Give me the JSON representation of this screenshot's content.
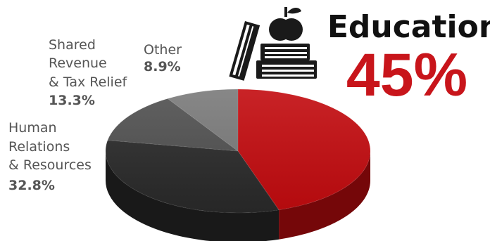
{
  "chart_data": {
    "type": "pie",
    "style": "3d",
    "slices": [
      {
        "name": "Education",
        "name_lines": [
          "Education"
        ],
        "value": 45,
        "label": "45%",
        "color": "#c30b0f"
      },
      {
        "name": "Human Relations & Resources",
        "name_lines": [
          "Human",
          "Relations",
          "& Resources"
        ],
        "value": 32.8,
        "label": "32.8%",
        "color": "#2a2a2a"
      },
      {
        "name": "Shared Revenue & Tax Relief",
        "name_lines": [
          "Shared",
          "Revenue",
          "& Tax Relief"
        ],
        "value": 13.3,
        "label": "13.3%",
        "color": "#505050"
      },
      {
        "name": "Other",
        "name_lines": [
          "Other"
        ],
        "value": 8.9,
        "label": "8.9%",
        "color": "#7a7a7a"
      }
    ]
  },
  "icons": {
    "books": "books-with-apple-icon"
  }
}
